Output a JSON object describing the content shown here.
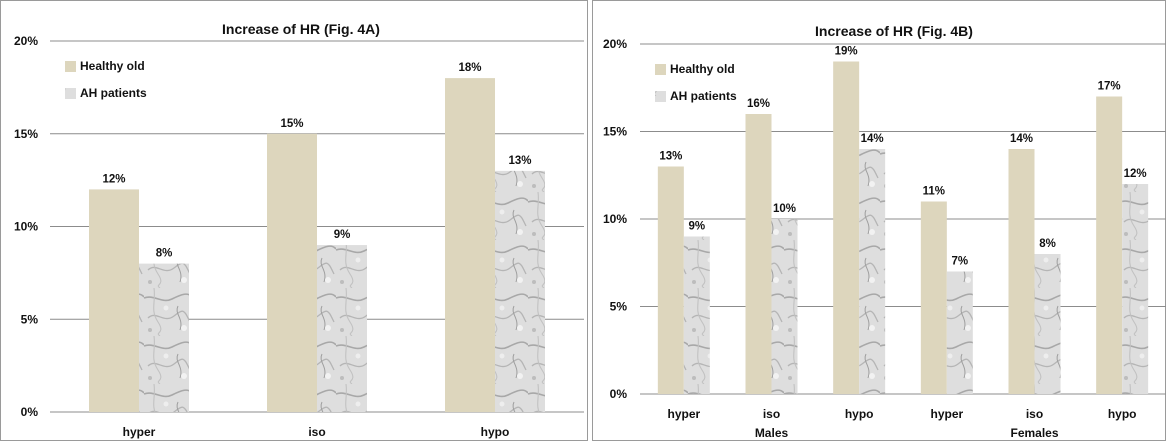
{
  "colors": {
    "healthy_old": "#ddd6bd",
    "ah_patients": "#c9c9c9",
    "gridline": "#8c8c8c"
  },
  "chart_data": [
    {
      "type": "bar",
      "title": "Increase of HR (Fig. 4A)",
      "categories": [
        "hyper",
        "iso",
        "hypo"
      ],
      "series": [
        {
          "name": "Healthy old",
          "values": [
            12,
            15,
            18
          ],
          "labels": [
            "12%",
            "15%",
            "18%"
          ]
        },
        {
          "name": "AH patients",
          "values": [
            8,
            9,
            13
          ],
          "labels": [
            "8%",
            "9%",
            "13%"
          ]
        }
      ],
      "ylim": [
        0,
        20
      ],
      "yticks": [
        "0%",
        "5%",
        "10%",
        "15%",
        "20%"
      ],
      "xlabel": "",
      "ylabel": "",
      "grid": true,
      "legend": "top-left"
    },
    {
      "type": "bar",
      "title": "Increase of HR (Fig. 4B)",
      "categories": [
        "hyper",
        "iso",
        "hypo",
        "hyper",
        "iso",
        "hypo"
      ],
      "groups": [
        {
          "label": "Males",
          "span": [
            0,
            2
          ]
        },
        {
          "label": "Females",
          "span": [
            3,
            5
          ]
        }
      ],
      "series": [
        {
          "name": "Healthy old",
          "values": [
            13,
            16,
            19,
            11,
            14,
            17
          ],
          "labels": [
            "13%",
            "16%",
            "19%",
            "11%",
            "14%",
            "17%"
          ]
        },
        {
          "name": "AH patients",
          "values": [
            9,
            10,
            14,
            7,
            8,
            12
          ],
          "labels": [
            "9%",
            "10%",
            "14%",
            "7%",
            "8%",
            "12%"
          ]
        }
      ],
      "ylim": [
        0,
        20
      ],
      "yticks": [
        "0%",
        "5%",
        "10%",
        "15%",
        "20%"
      ],
      "xlabel": "",
      "ylabel": "",
      "grid": true,
      "legend": "top-left"
    }
  ]
}
